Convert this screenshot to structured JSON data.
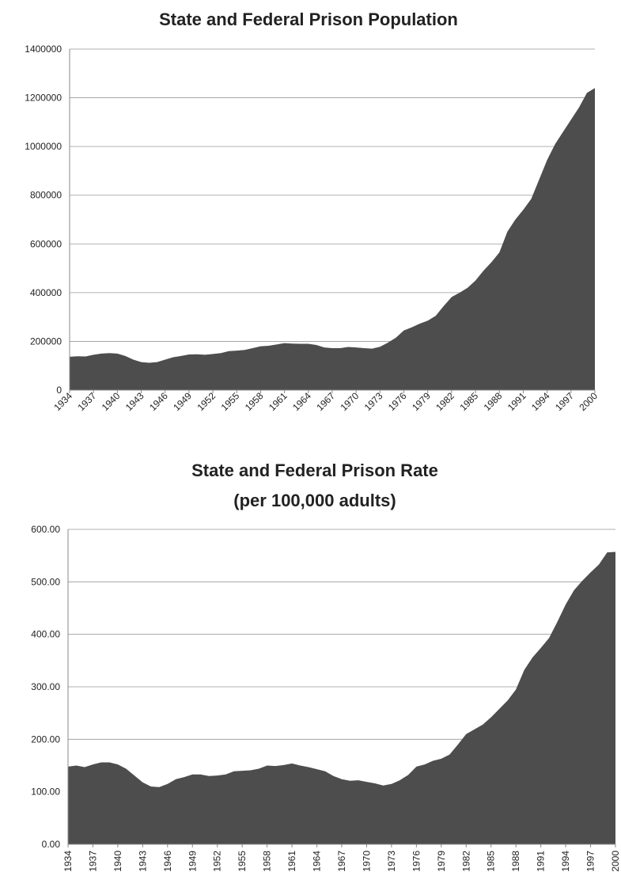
{
  "chart_data": [
    {
      "type": "area",
      "title": "State and Federal Prison Population",
      "categories": [
        "1934",
        null,
        null,
        "1937",
        null,
        null,
        "1940",
        null,
        null,
        "1943",
        null,
        null,
        "1946",
        null,
        null,
        "1949",
        null,
        null,
        "1952",
        null,
        null,
        "1955",
        null,
        null,
        "1958",
        null,
        null,
        "1961",
        null,
        null,
        "1964",
        null,
        null,
        "1967",
        null,
        null,
        "1970",
        null,
        null,
        "1973",
        null,
        null,
        "1976",
        null,
        null,
        "1979",
        null,
        null,
        "1982",
        null,
        null,
        "1985",
        null,
        null,
        "1988",
        null,
        null,
        "1991",
        null,
        null,
        "1994",
        null,
        null,
        "1997",
        null,
        null,
        "2000"
      ],
      "values": [
        137000,
        139000,
        138000,
        145000,
        150000,
        152000,
        150000,
        140000,
        125000,
        115000,
        112000,
        115000,
        125000,
        135000,
        140000,
        146000,
        147000,
        145000,
        148000,
        152000,
        160000,
        162000,
        165000,
        172000,
        180000,
        182000,
        187000,
        193000,
        191000,
        190000,
        190000,
        185000,
        175000,
        172000,
        172000,
        177000,
        175000,
        172000,
        170000,
        178000,
        195000,
        215000,
        245000,
        258000,
        273000,
        285000,
        305000,
        345000,
        382000,
        400000,
        420000,
        450000,
        490000,
        525000,
        565000,
        650000,
        700000,
        740000,
        785000,
        865000,
        945000,
        1010000,
        1060000,
        1110000,
        1160000,
        1220000,
        1240000
      ],
      "color": "#4d4d4d",
      "ylim": [
        0,
        1400000
      ],
      "yticks": [
        0,
        200000,
        400000,
        600000,
        800000,
        1000000,
        1200000,
        1400000
      ],
      "grid": true
    },
    {
      "type": "area",
      "title": "State and Federal Prison Rate",
      "subtitle": "(per 100,000 adults)",
      "categories": [
        "1934",
        null,
        null,
        "1937",
        null,
        null,
        "1940",
        null,
        null,
        "1943",
        null,
        null,
        "1946",
        null,
        null,
        "1949",
        null,
        null,
        "1952",
        null,
        null,
        "1955",
        null,
        null,
        "1958",
        null,
        null,
        "1961",
        null,
        null,
        "1964",
        null,
        null,
        "1967",
        null,
        null,
        "1970",
        null,
        null,
        "1973",
        null,
        null,
        "1976",
        null,
        null,
        "1979",
        null,
        null,
        "1982",
        null,
        null,
        "1985",
        null,
        null,
        "1988",
        null,
        null,
        "1991",
        null,
        null,
        "1994",
        null,
        null,
        "1997",
        null,
        null,
        "2000"
      ],
      "values": [
        148,
        150,
        147,
        152,
        156,
        156,
        152,
        144,
        131,
        118,
        110,
        109,
        115,
        124,
        128,
        133,
        133,
        130,
        131,
        133,
        139,
        140,
        141,
        144,
        150,
        149,
        151,
        154,
        150,
        147,
        143,
        139,
        130,
        124,
        121,
        122,
        119,
        116,
        112,
        115,
        122,
        132,
        148,
        152,
        159,
        163,
        171,
        190,
        210,
        219,
        228,
        242,
        258,
        274,
        295,
        332,
        356,
        374,
        393,
        424,
        457,
        484,
        502,
        518,
        533,
        556,
        557
      ],
      "color": "#4d4d4d",
      "ylim": [
        0,
        600
      ],
      "yticks": [
        {
          "value": 0,
          "label": "0.00"
        },
        {
          "value": 100,
          "label": "100.00"
        },
        {
          "value": 200,
          "label": "200.00"
        },
        {
          "value": 300,
          "label": "300.00"
        },
        {
          "value": 400,
          "label": "400.00"
        },
        {
          "value": 500,
          "label": "500.00"
        },
        {
          "value": 600,
          "label": "600.00"
        }
      ],
      "grid": true
    }
  ]
}
